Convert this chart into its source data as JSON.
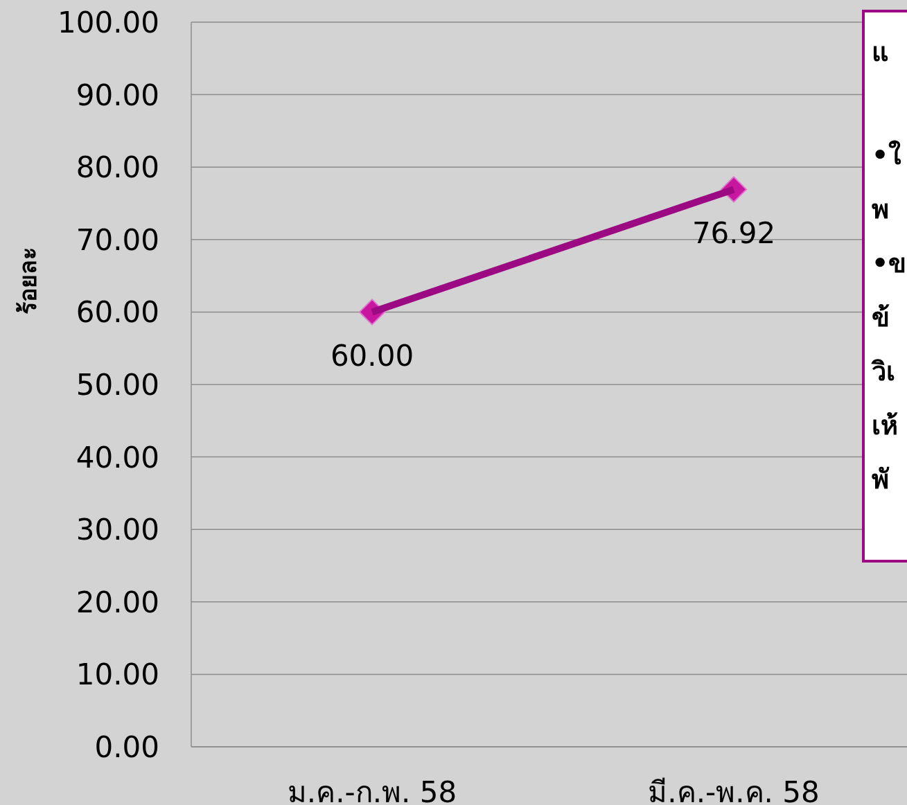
{
  "chart_data": {
    "type": "line",
    "ylabel": "ร้อยละ",
    "categories": [
      "ม.ค.-ก.พ. 58",
      "มี.ค.-พ.ค. 58"
    ],
    "series": [
      {
        "color": "#9b0a82",
        "values": [
          60,
          76.92
        ],
        "value_labels": [
          "60.00",
          "76.92"
        ]
      }
    ],
    "marker": "diamond",
    "grid": "y",
    "ylim": [
      0,
      100
    ],
    "yticks": [
      {
        "value": 0,
        "label": "0.00"
      },
      {
        "value": 10,
        "label": "10.00"
      },
      {
        "value": 20,
        "label": "20.00"
      },
      {
        "value": 30,
        "label": "30.00"
      },
      {
        "value": 40,
        "label": "40.00"
      },
      {
        "value": 50,
        "label": "50.00"
      },
      {
        "value": 60,
        "label": "60.00"
      },
      {
        "value": 70,
        "label": "70.00"
      },
      {
        "value": 80,
        "label": "80.00"
      },
      {
        "value": 90,
        "label": "90.00"
      },
      {
        "value": 100,
        "label": "100.00"
      }
    ],
    "annotations": [
      "แ",
      "•ใ",
      "พ",
      "•ข",
      "ข้",
      "วิเ",
      "เห้",
      "พั"
    ]
  }
}
